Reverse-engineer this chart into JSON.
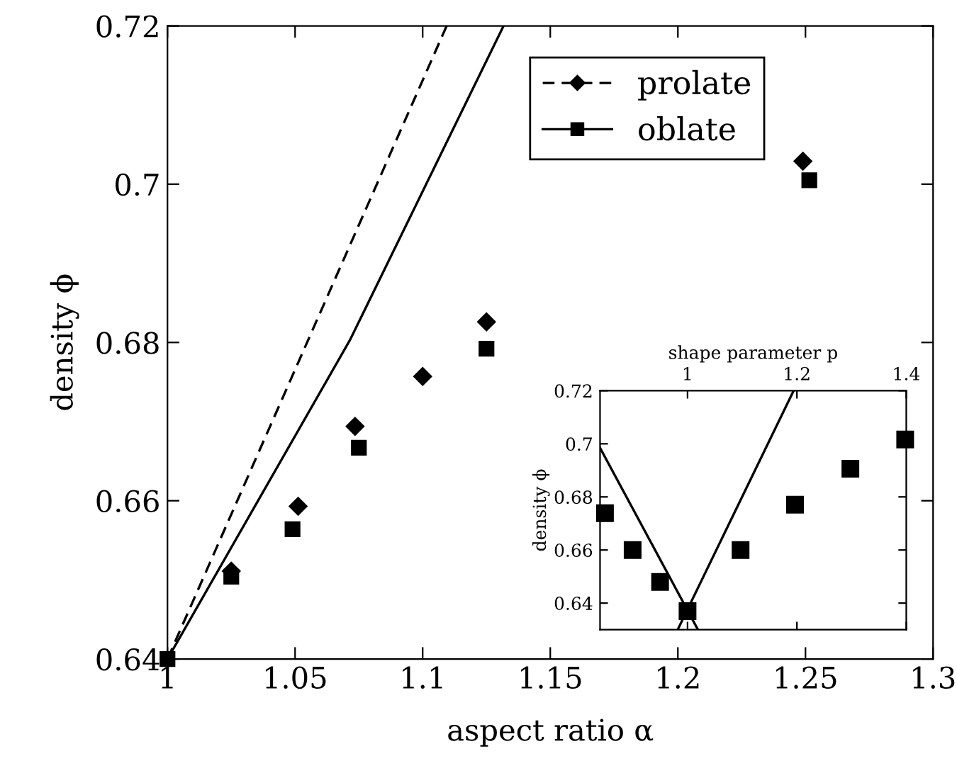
{
  "chart_data": [
    {
      "type": "scatter",
      "xlabel": "aspect ratio α",
      "ylabel": "density ϕ",
      "xlim": [
        1,
        1.3
      ],
      "ylim": [
        0.64,
        0.72
      ],
      "xticks": [
        1,
        1.05,
        1.1,
        1.15,
        1.2,
        1.25,
        1.3
      ],
      "yticks": [
        0.64,
        0.66,
        0.68,
        0.7,
        0.72
      ],
      "grid": false,
      "legend": "top right",
      "series": [
        {
          "name": "prolate",
          "marker": "diamond",
          "line_style": "dashed",
          "color": "#000000",
          "x": [
            1.025,
            1.0512,
            1.0735,
            1.1,
            1.125,
            1.249
          ],
          "values": [
            0.6511,
            0.6593,
            0.6694,
            0.6757,
            0.6826,
            0.7029
          ]
        },
        {
          "name": "oblate",
          "marker": "square",
          "line_style": "solid",
          "color": "#000000",
          "x": [
            1,
            1.025,
            1.049,
            1.075,
            1.125,
            1.2515
          ],
          "values": [
            0.64,
            0.6504,
            0.6564,
            0.6667,
            0.6792,
            0.7005
          ]
        },
        {
          "type": "line",
          "marker": "none",
          "line_style": "dashed",
          "color": "#000000",
          "x": [
            1,
            1.1094
          ],
          "values": [
            0.64,
            0.72
          ]
        },
        {
          "type": "line",
          "marker": "none",
          "line_style": "solid",
          "color": "#000000",
          "x": [
            1,
            1.0715,
            1.1317
          ],
          "values": [
            0.64,
            0.6803,
            0.72
          ]
        }
      ]
    },
    {
      "type": "scatter",
      "xlabel": "shape parameter p",
      "ylabel": "density ϕ",
      "xlim": [
        0.84,
        1.4
      ],
      "ylim": [
        0.63,
        0.72
      ],
      "xticks": [
        1,
        1.2,
        1.4
      ],
      "yticks": [
        0.64,
        0.66,
        0.68,
        0.7,
        0.72
      ],
      "grid": false,
      "series": [
        {
          "marker": "square",
          "color": "#000000",
          "x": [
            0.849,
            0.8996,
            0.9498,
            1.0,
            1.097,
            1.1965,
            1.2978,
            1.398
          ],
          "values": [
            0.6739,
            0.66,
            0.648,
            0.637,
            0.66,
            0.6771,
            0.6906,
            0.7016
          ]
        },
        {
          "type": "line",
          "marker": "none",
          "line_style": "solid",
          "color": "#000000",
          "x": [
            0.84,
            1.019
          ],
          "values": [
            0.6985,
            0.63
          ]
        },
        {
          "type": "line",
          "marker": "none",
          "line_style": "solid",
          "color": "#000000",
          "x": [
            0.982,
            1.194
          ],
          "values": [
            0.63,
            0.72
          ]
        }
      ]
    }
  ]
}
